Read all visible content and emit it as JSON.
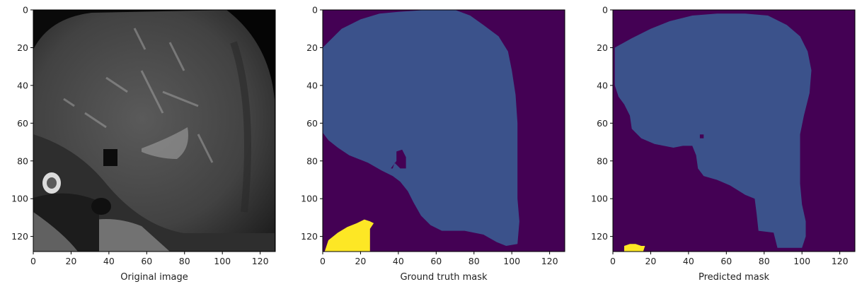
{
  "chart_data": [
    {
      "type": "image",
      "xlabel": "Original image",
      "xlim": [
        0,
        128
      ],
      "ylim": [
        128,
        0
      ],
      "xticks": [
        0,
        20,
        40,
        60,
        80,
        100,
        120
      ],
      "yticks": [
        0,
        20,
        40,
        60,
        80,
        100,
        120
      ],
      "colormap": "gray",
      "content": "grayscale MRI slice"
    },
    {
      "type": "heatmap",
      "xlabel": "Ground truth mask",
      "xlim": [
        0,
        128
      ],
      "ylim": [
        128,
        0
      ],
      "xticks": [
        0,
        20,
        40,
        60,
        80,
        100,
        120
      ],
      "yticks": [
        0,
        20,
        40,
        60,
        80,
        100,
        120
      ],
      "colors": {
        "background": "#440154",
        "class1": "#3b528b",
        "class2": "#fde725"
      },
      "regions": [
        {
          "class": "class1",
          "outline": [
            [
              3,
              17
            ],
            [
              10,
              10
            ],
            [
              20,
              5
            ],
            [
              30,
              2
            ],
            [
              40,
              1
            ],
            [
              55,
              0
            ],
            [
              70,
              0
            ],
            [
              78,
              3
            ],
            [
              85,
              8
            ],
            [
              93,
              14
            ],
            [
              98,
              22
            ],
            [
              100,
              32
            ],
            [
              102,
              45
            ],
            [
              103,
              60
            ],
            [
              103,
              80
            ],
            [
              103,
              100
            ],
            [
              104,
              112
            ],
            [
              103,
              124
            ],
            [
              97,
              125
            ],
            [
              92,
              123
            ],
            [
              85,
              119
            ],
            [
              75,
              117
            ],
            [
              63,
              117
            ],
            [
              57,
              114
            ],
            [
              52,
              109
            ],
            [
              48,
              102
            ],
            [
              45,
              96
            ],
            [
              41,
              91
            ],
            [
              37,
              88
            ],
            [
              31,
              85
            ],
            [
              24,
              81
            ],
            [
              14,
              77
            ],
            [
              8,
              73
            ],
            [
              3,
              69
            ],
            [
              0,
              65
            ],
            [
              0,
              20
            ]
          ]
        },
        {
          "class": "background",
          "outline": [
            [
              39,
              75
            ],
            [
              42,
              74
            ],
            [
              44,
              78
            ],
            [
              44,
              84
            ],
            [
              41,
              84
            ],
            [
              38,
              81
            ],
            [
              37,
              84
            ],
            [
              36,
              84
            ],
            [
              39,
              80
            ]
          ]
        },
        {
          "class": "class2",
          "outline": [
            [
              1,
              128
            ],
            [
              3,
              122
            ],
            [
              8,
              118
            ],
            [
              13,
              115
            ],
            [
              18,
              113
            ],
            [
              22,
              111
            ],
            [
              25,
              112
            ],
            [
              27,
              113
            ],
            [
              25,
              116
            ],
            [
              25,
              128
            ]
          ]
        }
      ]
    },
    {
      "type": "heatmap",
      "xlabel": "Predicted mask",
      "xlim": [
        0,
        128
      ],
      "ylim": [
        128,
        0
      ],
      "xticks": [
        0,
        20,
        40,
        60,
        80,
        100,
        120
      ],
      "yticks": [
        0,
        20,
        40,
        60,
        80,
        100,
        120
      ],
      "colors": {
        "background": "#440154",
        "class1": "#3b528b",
        "class2": "#fde725"
      },
      "regions": [
        {
          "class": "class1",
          "outline": [
            [
              1,
              20
            ],
            [
              10,
              15
            ],
            [
              20,
              10
            ],
            [
              30,
              6
            ],
            [
              42,
              3
            ],
            [
              55,
              2
            ],
            [
              70,
              2
            ],
            [
              82,
              3
            ],
            [
              92,
              8
            ],
            [
              99,
              14
            ],
            [
              103,
              22
            ],
            [
              105,
              32
            ],
            [
              104,
              44
            ],
            [
              101,
              56
            ],
            [
              99,
              66
            ],
            [
              99,
              78
            ],
            [
              99,
              92
            ],
            [
              100,
              103
            ],
            [
              102,
              112
            ],
            [
              102,
              120
            ],
            [
              100,
              126
            ],
            [
              87,
              126
            ],
            [
              85,
              118
            ],
            [
              77,
              117
            ],
            [
              76,
              108
            ],
            [
              75,
              100
            ],
            [
              70,
              98
            ],
            [
              62,
              93
            ],
            [
              55,
              90
            ],
            [
              48,
              88
            ],
            [
              45,
              84
            ],
            [
              44,
              77
            ],
            [
              42,
              72
            ],
            [
              37,
              72
            ],
            [
              32,
              73
            ],
            [
              27,
              72
            ],
            [
              22,
              71
            ],
            [
              15,
              68
            ],
            [
              10,
              63
            ],
            [
              9,
              56
            ],
            [
              6,
              50
            ],
            [
              3,
              46
            ],
            [
              1,
              40
            ]
          ]
        },
        {
          "class": "background",
          "outline": [
            [
              46,
              66
            ],
            [
              48,
              66
            ],
            [
              48,
              68
            ],
            [
              46,
              68
            ]
          ]
        },
        {
          "class": "class2",
          "outline": [
            [
              6,
              128
            ],
            [
              6,
              125
            ],
            [
              9,
              124
            ],
            [
              12,
              124
            ],
            [
              15,
              125
            ],
            [
              17,
              125
            ],
            [
              16,
              128
            ]
          ]
        }
      ]
    }
  ]
}
